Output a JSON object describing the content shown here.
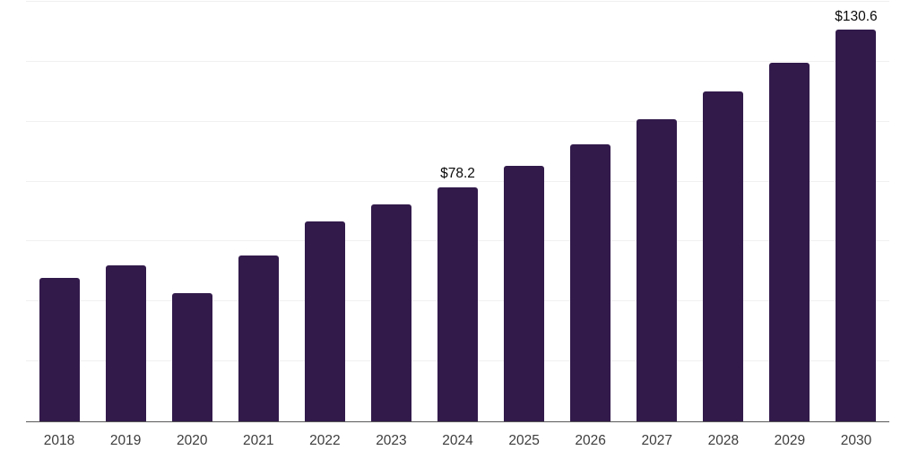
{
  "chart_data": {
    "type": "bar",
    "title": "",
    "xlabel": "",
    "ylabel": "",
    "categories": [
      "2018",
      "2019",
      "2020",
      "2021",
      "2022",
      "2023",
      "2024",
      "2025",
      "2026",
      "2027",
      "2028",
      "2029",
      "2030"
    ],
    "values": [
      47.9,
      52.1,
      42.7,
      55.3,
      66.8,
      72.3,
      78.2,
      85.3,
      92.5,
      100.7,
      110.0,
      119.8,
      130.6
    ],
    "data_labels": [
      null,
      null,
      null,
      null,
      null,
      null,
      "$78.2",
      null,
      null,
      null,
      null,
      null,
      "$130.6"
    ],
    "ylim": [
      0,
      140
    ],
    "gridline_values": [
      20,
      40,
      60,
      80,
      100,
      120,
      140
    ],
    "grid": true,
    "legend": false,
    "y_axis_tick_labels_visible": false
  },
  "style": {
    "background": "#ffffff",
    "bar_color": "#321a4b",
    "grid_color": "#f0f0f0",
    "axis_color": "#595959",
    "tick_label_color": "#3d3d3d",
    "data_label_color": "#0a0a0a"
  }
}
